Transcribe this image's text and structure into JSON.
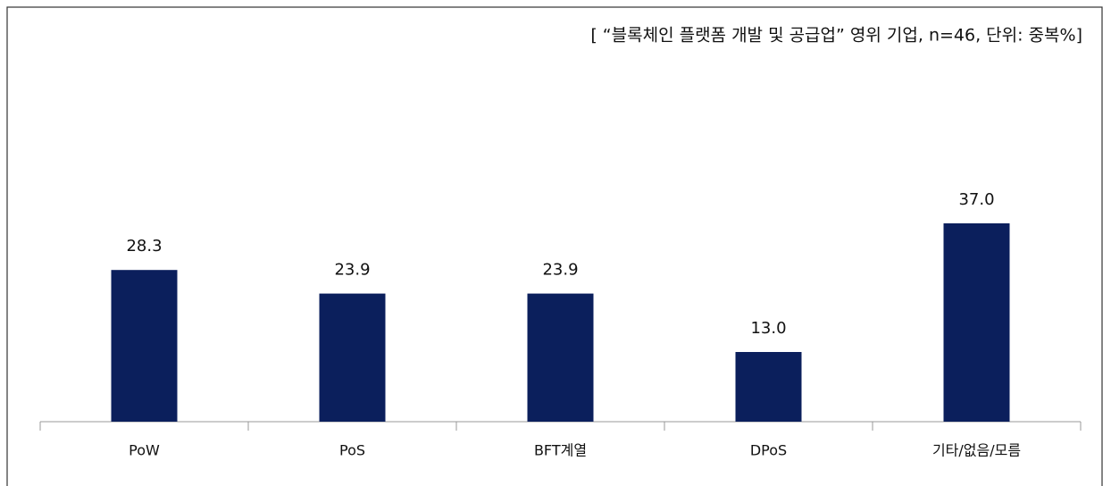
{
  "chart_data": {
    "type": "bar",
    "title": "[ “블록체인 플랫폼 개발 및 공급업” 영위 기업, n=46, 단위: 중복%]",
    "categories": [
      "PoW",
      "PoS",
      "BFT계열",
      "DPoS",
      "기타/없음/모름"
    ],
    "values": [
      28.3,
      23.9,
      23.9,
      13.0,
      37.0
    ],
    "value_labels": [
      "28.3",
      "23.9",
      "23.9",
      "13.0",
      "37.0"
    ],
    "color": "#0b1f5c"
  }
}
